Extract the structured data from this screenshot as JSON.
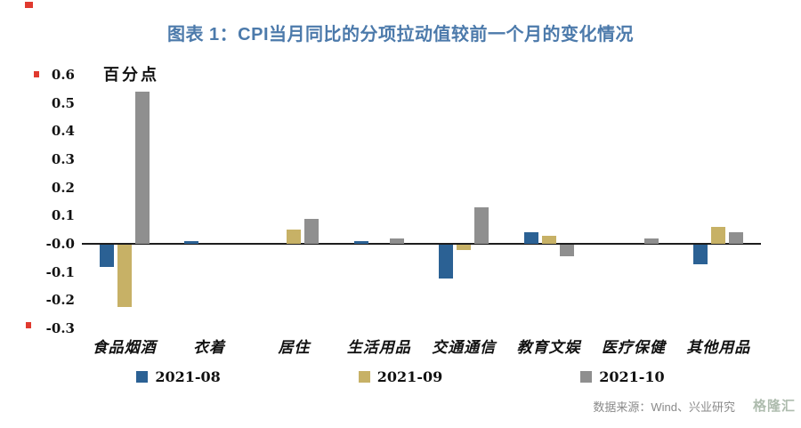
{
  "header": {
    "title": "图表 1：CPI当月同比的分项拉动值较前一个月的变化情况"
  },
  "chart_data": {
    "type": "bar",
    "title": "图表 1：CPI当月同比的分项拉动值较前一个月的变化情况",
    "unit_label": "百分点",
    "categories": [
      "食品烟酒",
      "衣着",
      "居住",
      "生活用品",
      "交通通信",
      "教育文娱",
      "医疗保健",
      "其他用品"
    ],
    "series": [
      {
        "name": "2021-08",
        "color": "#2b6194",
        "values": [
          -0.08,
          0.01,
          0.0,
          0.01,
          -0.12,
          0.04,
          0.0,
          -0.07
        ]
      },
      {
        "name": "2021-09",
        "color": "#c7b166",
        "values": [
          -0.22,
          0.0,
          0.05,
          0.0,
          -0.02,
          0.03,
          0.0,
          0.06
        ]
      },
      {
        "name": "2021-10",
        "color": "#8f8f8f",
        "values": [
          0.54,
          0.0,
          0.09,
          0.02,
          0.13,
          -0.04,
          0.02,
          0.04
        ]
      }
    ],
    "ylim": [
      -0.3,
      0.6
    ],
    "ytick_step": 0.1,
    "grid": false,
    "legend_position": "bottom"
  },
  "footer": {
    "source": "数据来源：Wind、兴业研究",
    "watermark": "格隆汇"
  }
}
